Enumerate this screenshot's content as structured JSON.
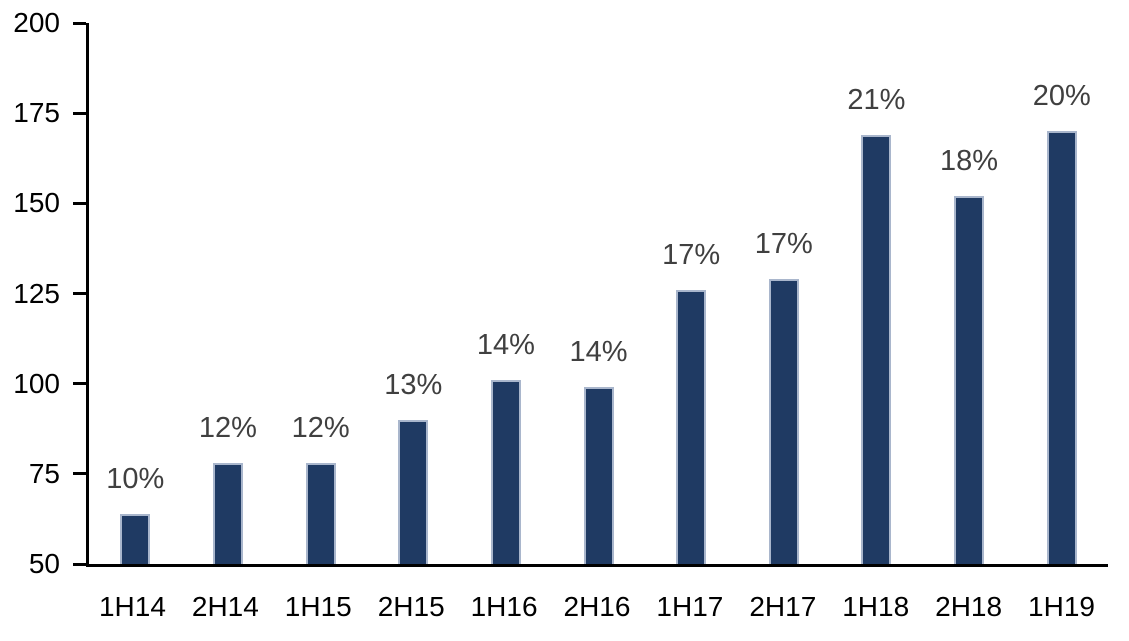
{
  "chart_data": {
    "type": "bar",
    "title": "",
    "xlabel": "",
    "ylabel": "",
    "categories": [
      "1H14",
      "2H14",
      "1H15",
      "2H15",
      "1H16",
      "2H16",
      "1H17",
      "2H17",
      "1H18",
      "2H18",
      "1H19"
    ],
    "values": [
      64,
      78,
      78,
      90,
      101,
      99,
      126,
      129,
      169,
      152,
      170
    ],
    "bar_labels": [
      "10%",
      "12%",
      "12%",
      "13%",
      "14%",
      "14%",
      "17%",
      "17%",
      "21%",
      "18%",
      "20%"
    ],
    "ylim": [
      50,
      200
    ],
    "yticks": [
      200,
      175,
      150,
      125,
      100,
      75,
      50
    ],
    "grid": false,
    "legend": "none",
    "colors": {
      "bar_fill": "#1F3A63",
      "bar_border": "#A9B6CC",
      "data_label": "#404040",
      "axis": "#000000",
      "tick_label": "#000000",
      "background": "#FFFFFF"
    }
  }
}
